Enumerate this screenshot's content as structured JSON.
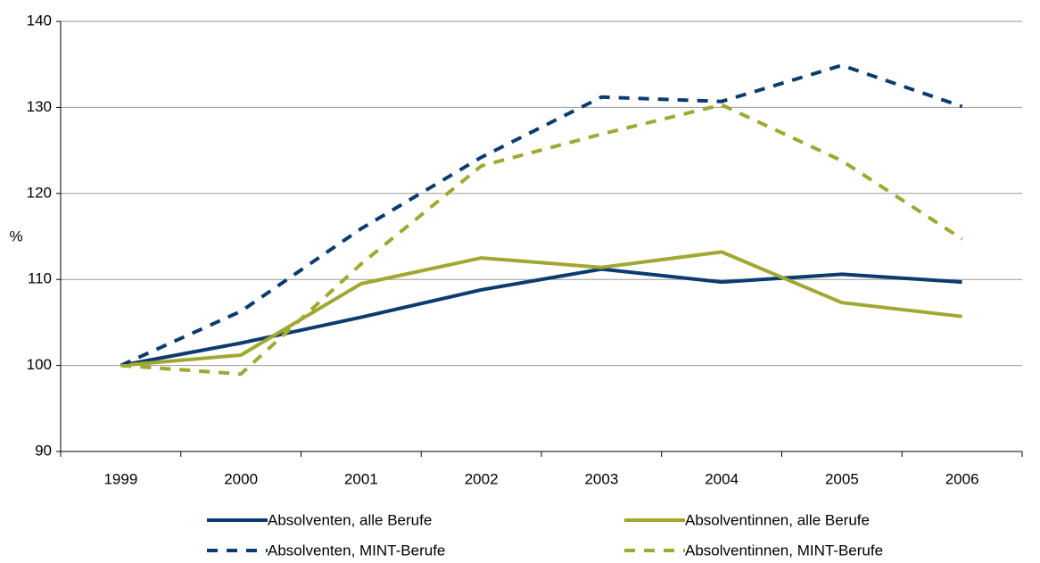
{
  "chart_data": {
    "type": "line",
    "y_label": "%",
    "categories": [
      "1999",
      "2000",
      "2001",
      "2002",
      "2003",
      "2004",
      "2005",
      "2006"
    ],
    "ylim": [
      90,
      140
    ],
    "yticks": [
      90,
      100,
      110,
      120,
      130,
      140
    ],
    "grid": true,
    "series": [
      {
        "name": "Absolventen, alle Berufe",
        "color": "#0b3b6f",
        "dashed": false,
        "values": [
          100,
          102.6,
          105.6,
          108.8,
          111.2,
          109.7,
          110.6,
          109.7
        ]
      },
      {
        "name": "Absolventinnen, alle Berufe",
        "color": "#a0a831",
        "dashed": false,
        "values": [
          100,
          101.2,
          109.5,
          112.5,
          111.4,
          113.2,
          107.3,
          105.7
        ]
      },
      {
        "name": "Absolventen, MINT-Berufe",
        "color": "#0b3b6f",
        "dashed": true,
        "values": [
          100,
          106.3,
          115.9,
          124.2,
          131.2,
          130.7,
          134.9,
          130.1
        ]
      },
      {
        "name": "Absolventinnen, MINT-Berufe",
        "color": "#a0a831",
        "dashed": true,
        "values": [
          100,
          99.0,
          111.8,
          123.2,
          126.9,
          130.3,
          123.8,
          114.7
        ]
      }
    ]
  }
}
